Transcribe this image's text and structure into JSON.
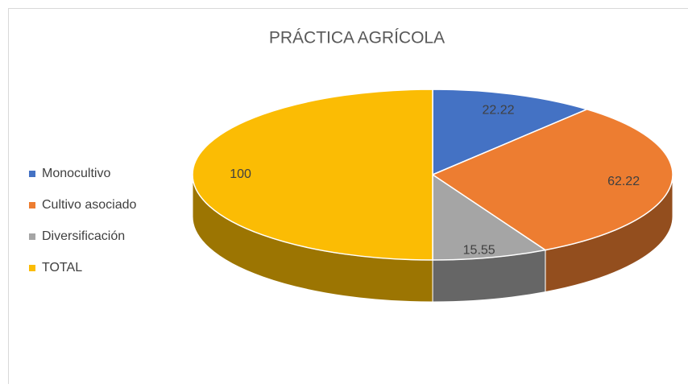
{
  "chart_data": {
    "type": "pie",
    "title": "PRÁCTICA AGRÍCOLA",
    "categories": [
      "Monocultivo",
      "Cultivo asociado",
      "Diversificación",
      "TOTAL"
    ],
    "values": [
      22.22,
      62.22,
      15.55,
      100
    ],
    "colors": [
      "#4472c4",
      "#ed7d31",
      "#a5a5a5",
      "#fbbc04"
    ],
    "legend": "left"
  }
}
